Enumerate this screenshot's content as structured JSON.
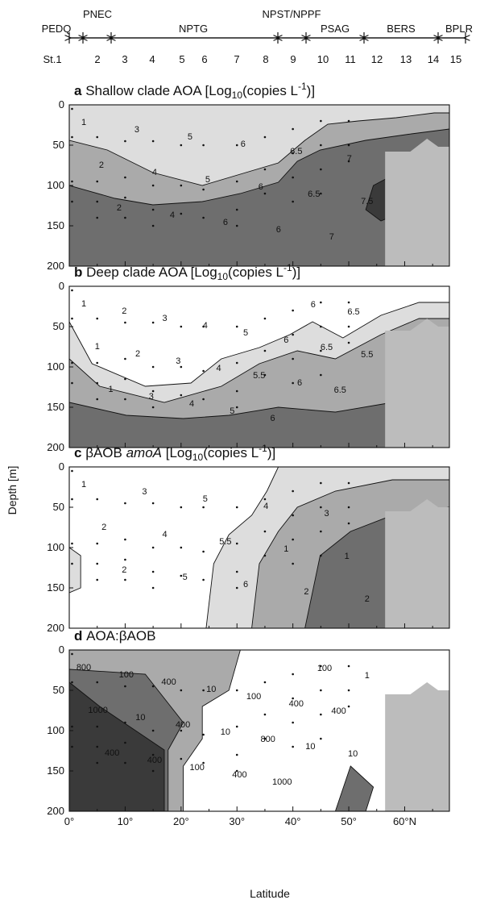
{
  "regions": [
    {
      "name": "PEDQ",
      "from": "St.1",
      "to": "St.1"
    },
    {
      "name": "PNEC",
      "from": "St.1",
      "to": "2"
    },
    {
      "name": "NPTG",
      "from": "3",
      "to": "8"
    },
    {
      "name": "NPST/NPPF",
      "from": "8",
      "to": "9"
    },
    {
      "name": "PSAG",
      "from": "10",
      "to": "11"
    },
    {
      "name": "BERS",
      "from": "12",
      "to": "14"
    },
    {
      "name": "BPLR",
      "from": "15",
      "to": "15"
    }
  ],
  "stations": [
    "St.1",
    "2",
    "3",
    "4",
    "5",
    "6",
    "7",
    "8",
    "9",
    "10",
    "11",
    "12",
    "13",
    "14",
    "15"
  ],
  "station_lat": [
    0,
    5,
    10,
    15,
    20,
    24,
    30,
    35,
    40,
    45,
    50,
    55,
    60,
    65,
    68
  ],
  "ylabel": "Depth [m]",
  "xlabel": "Latitude",
  "colors": {
    "fill_light": "#dddddd",
    "fill_mid": "#aaaaaa",
    "fill_dark": "#6e6e6e",
    "fill_darkest": "#3a3a3a",
    "land": "#bcbcbc",
    "line": "#111111"
  },
  "chart_data": [
    {
      "type": "heatmap",
      "panel": "a",
      "title_bold": "a",
      "title": "Shallow clade AOA [Log",
      "title_sub": "10",
      "title_mid": "(copies L",
      "title_sup": "-1",
      "title_end": ")]",
      "xlim": [
        0,
        68
      ],
      "ylim": [
        200,
        0
      ],
      "x_ticks": [],
      "y_ticks": [
        "0",
        "50",
        "100",
        "150",
        "200"
      ],
      "contour_labels": [
        "1",
        "2",
        "2",
        "3",
        "4",
        "4",
        "5",
        "5",
        "6",
        "6",
        "6",
        "6",
        "6.5",
        "6.5",
        "7",
        "7",
        "7.5"
      ]
    },
    {
      "type": "heatmap",
      "panel": "b",
      "title_bold": "b",
      "title": "Deep clade AOA [Log",
      "title_sub": "10",
      "title_mid": "(copies L",
      "title_sup": "-1",
      "title_end": ")]",
      "xlim": [
        0,
        68
      ],
      "ylim": [
        200,
        0
      ],
      "y_ticks": [
        "0",
        "50",
        "100",
        "150",
        "200"
      ],
      "contour_labels": [
        "1",
        "1",
        "1",
        "2",
        "2",
        "3",
        "3",
        "3",
        "4",
        "4",
        "4",
        "5",
        "5",
        "5.5",
        "6",
        "6",
        "6",
        "6",
        "6.5",
        "6.5",
        "6.5",
        "5.5"
      ]
    },
    {
      "type": "heatmap",
      "panel": "c",
      "title_bold": "c",
      "title": "βAOB ",
      "title_italic": "amoA",
      "title_tail": " [Log",
      "title_sub": "10",
      "title_mid": "(copies L",
      "title_sup": "-1",
      "title_end": ")]",
      "xlim": [
        0,
        68
      ],
      "ylim": [
        200,
        0
      ],
      "y_ticks": [
        "0",
        "50",
        "100",
        "150",
        "200"
      ],
      "contour_labels": [
        "1",
        "2",
        "2",
        "3",
        "4",
        "5",
        "5",
        "5.5",
        "6",
        "4",
        "1",
        "2",
        "3",
        "1",
        "2"
      ]
    },
    {
      "type": "heatmap",
      "panel": "d",
      "title_bold": "d",
      "title": "AOA:βAOB",
      "xlim": [
        0,
        68
      ],
      "ylim": [
        200,
        0
      ],
      "y_ticks": [
        "0",
        "50",
        "100",
        "150",
        "200"
      ],
      "x_ticks": [
        "0°",
        "10°",
        "20°",
        "30°",
        "40°",
        "50°",
        "60°N"
      ],
      "contour_labels": [
        "800",
        "1000",
        "400",
        "100",
        "10",
        "400",
        "400",
        "400",
        "100",
        "10",
        "10",
        "400",
        "100",
        "800",
        "1000",
        "400",
        "10",
        "100",
        "400",
        "10",
        "1"
      ]
    }
  ]
}
